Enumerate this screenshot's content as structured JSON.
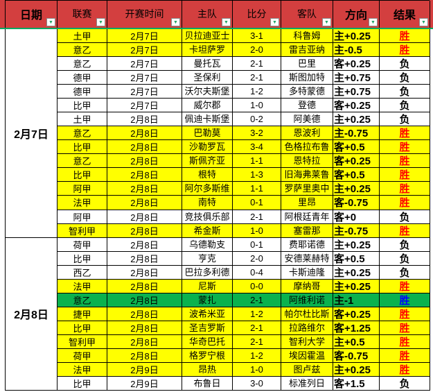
{
  "table": {
    "headers": [
      {
        "key": "date",
        "label": "日期",
        "bold": true
      },
      {
        "key": "league",
        "label": "联赛",
        "bold": false
      },
      {
        "key": "kickoff-time",
        "label": "开赛时间",
        "bold": false
      },
      {
        "key": "home-team",
        "label": "主队",
        "bold": false
      },
      {
        "key": "score",
        "label": "比分",
        "bold": false
      },
      {
        "key": "away-team",
        "label": "客队",
        "bold": false
      },
      {
        "key": "direction",
        "label": "方向",
        "bold": true
      },
      {
        "key": "result",
        "label": "结果",
        "bold": true
      }
    ],
    "date_groups": [
      {
        "label": "2月7日",
        "start": 1,
        "span": 15
      },
      {
        "label": "2月8日",
        "start": 16,
        "span": 11
      }
    ],
    "rows": [
      {
        "league": "土甲",
        "kickoff": "2月7日",
        "home": "贝拉迪亚士邦",
        "score": "3-1",
        "away": "科鲁姆",
        "direction": "主+0.25",
        "result": "胜",
        "bg": "yellow",
        "result_color": "red"
      },
      {
        "league": "意乙",
        "kickoff": "2月7日",
        "home": "卡坦萨罗",
        "score": "2-0",
        "away": "雷吉亚纳",
        "direction": "主-0.5",
        "result": "胜",
        "bg": "yellow",
        "result_color": "red"
      },
      {
        "league": "意乙",
        "kickoff": "2月7日",
        "home": "曼托瓦",
        "score": "2-1",
        "away": "巴里",
        "direction": "客+0.25",
        "result": "负",
        "bg": "white",
        "result_color": "black"
      },
      {
        "league": "德甲",
        "kickoff": "2月7日",
        "home": "圣保利",
        "score": "2-1",
        "away": "斯图加特",
        "direction": "主+0.75",
        "result": "负",
        "bg": "white",
        "result_color": "black"
      },
      {
        "league": "德甲",
        "kickoff": "2月7日",
        "home": "沃尔夫斯堡",
        "score": "1-2",
        "away": "多特蒙德",
        "direction": "主+0.75",
        "result": "负",
        "bg": "white",
        "result_color": "black"
      },
      {
        "league": "比甲",
        "kickoff": "2月7日",
        "home": "威尔郡",
        "score": "1-0",
        "away": "登德",
        "direction": "客+0.25",
        "result": "负",
        "bg": "white",
        "result_color": "black"
      },
      {
        "league": "土甲",
        "kickoff": "2月8日",
        "home": "佩迪卡斯堡",
        "score": "0-2",
        "away": "阿美德",
        "direction": "主+0.25",
        "result": "负",
        "bg": "white",
        "result_color": "black"
      },
      {
        "league": "意乙",
        "kickoff": "2月8日",
        "home": "巴勒莫",
        "score": "3-2",
        "away": "恩波利",
        "direction": "主-0.75",
        "result": "胜",
        "bg": "yellow",
        "result_color": "red"
      },
      {
        "league": "比甲",
        "kickoff": "2月8日",
        "home": "沙勒罗瓦",
        "score": "3-4",
        "away": "色格拉布鲁日",
        "direction": "客+0.5",
        "result": "胜",
        "bg": "yellow",
        "result_color": "red"
      },
      {
        "league": "意乙",
        "kickoff": "2月8日",
        "home": "斯佩齐亚",
        "score": "1-1",
        "away": "恩特拉",
        "direction": "客+0.25",
        "result": "胜",
        "bg": "yellow",
        "result_color": "red"
      },
      {
        "league": "比甲",
        "kickoff": "2月8日",
        "home": "根特",
        "score": "1-3",
        "away": "旧海弗莱鲁",
        "direction": "客+0.5",
        "result": "胜",
        "bg": "yellow",
        "result_color": "red"
      },
      {
        "league": "阿甲",
        "kickoff": "2月8日",
        "home": "阿尔多斯维",
        "score": "1-1",
        "away": "罗萨里奥中央",
        "direction": "主+0.25",
        "result": "胜",
        "bg": "yellow",
        "result_color": "red"
      },
      {
        "league": "法甲",
        "kickoff": "2月8日",
        "home": "南特",
        "score": "0-1",
        "away": "里昂",
        "direction": "客-0.75",
        "result": "胜",
        "bg": "yellow",
        "result_color": "red"
      },
      {
        "league": "阿甲",
        "kickoff": "2月8日",
        "home": "竞技俱乐部",
        "score": "2-1",
        "away": "阿根廷青年",
        "direction": "客+0",
        "result": "负",
        "bg": "white",
        "result_color": "black"
      },
      {
        "league": "智利甲",
        "kickoff": "2月8日",
        "home": "希金斯",
        "score": "1-0",
        "away": "塞雷那",
        "direction": "主-0.75",
        "result": "胜",
        "bg": "yellow",
        "result_color": "red"
      },
      {
        "league": "荷甲",
        "kickoff": "2月8日",
        "home": "乌德勒支",
        "score": "0-1",
        "away": "费耶诺德",
        "direction": "主+0.25",
        "result": "负",
        "bg": "white",
        "result_color": "black"
      },
      {
        "league": "比甲",
        "kickoff": "2月8日",
        "home": "亨克",
        "score": "2-0",
        "away": "安德莱赫特",
        "direction": "客+0.5",
        "result": "负",
        "bg": "white",
        "result_color": "black"
      },
      {
        "league": "西乙",
        "kickoff": "2月8日",
        "home": "巴拉多利德",
        "score": "0-4",
        "away": "卡斯迪隆",
        "direction": "主+0.25",
        "result": "负",
        "bg": "white",
        "result_color": "black"
      },
      {
        "league": "法甲",
        "kickoff": "2月8日",
        "home": "尼斯",
        "score": "0-0",
        "away": "摩纳哥",
        "direction": "主+0.25",
        "result": "胜",
        "bg": "yellow",
        "result_color": "red"
      },
      {
        "league": "意乙",
        "kickoff": "2月8日",
        "home": "蒙扎",
        "score": "2-1",
        "away": "阿维利诺",
        "direction": "主-1",
        "result": "胜",
        "bg": "green",
        "result_color": "blue"
      },
      {
        "league": "捷甲",
        "kickoff": "2月8日",
        "home": "波希米亚",
        "score": "1-2",
        "away": "帕尔杜比斯",
        "direction": "客+0.25",
        "result": "胜",
        "bg": "yellow",
        "result_color": "red"
      },
      {
        "league": "比甲",
        "kickoff": "2月8日",
        "home": "圣吉罗斯",
        "score": "2-1",
        "away": "拉路维尔",
        "direction": "客+1.25",
        "result": "胜",
        "bg": "yellow",
        "result_color": "red"
      },
      {
        "league": "智利甲",
        "kickoff": "2月8日",
        "home": "华奇巴托",
        "score": "2-1",
        "away": "智利大学",
        "direction": "主+0.5",
        "result": "胜",
        "bg": "yellow",
        "result_color": "red"
      },
      {
        "league": "荷甲",
        "kickoff": "2月8日",
        "home": "格罗宁根",
        "score": "1-2",
        "away": "埃因霍温",
        "direction": "客-0.75",
        "result": "胜",
        "bg": "yellow",
        "result_color": "red"
      },
      {
        "league": "法甲",
        "kickoff": "2月9日",
        "home": "昂热",
        "score": "1-0",
        "away": "图卢兹",
        "direction": "主+0.25",
        "result": "胜",
        "bg": "yellow",
        "result_color": "red"
      },
      {
        "league": "比甲",
        "kickoff": "2月9日",
        "home": "布鲁日",
        "score": "3-0",
        "away": "标准列日",
        "direction": "客+1.5",
        "result": "负",
        "bg": "white",
        "result_color": "black"
      }
    ]
  },
  "icons": {
    "filter_dropdown": "▼"
  },
  "colors": {
    "header_bg": "#D33F3F",
    "header_text": "#000000",
    "header_underline": "#00A862",
    "filter_arrow": "#21A366",
    "grid_border": "#000000",
    "row_yellow": "#FFFF00",
    "row_white": "#FFFFFF",
    "row_green": "#0AB24E",
    "result_red": "#FF0000",
    "result_black": "#000000",
    "result_blue": "#0000FF"
  }
}
